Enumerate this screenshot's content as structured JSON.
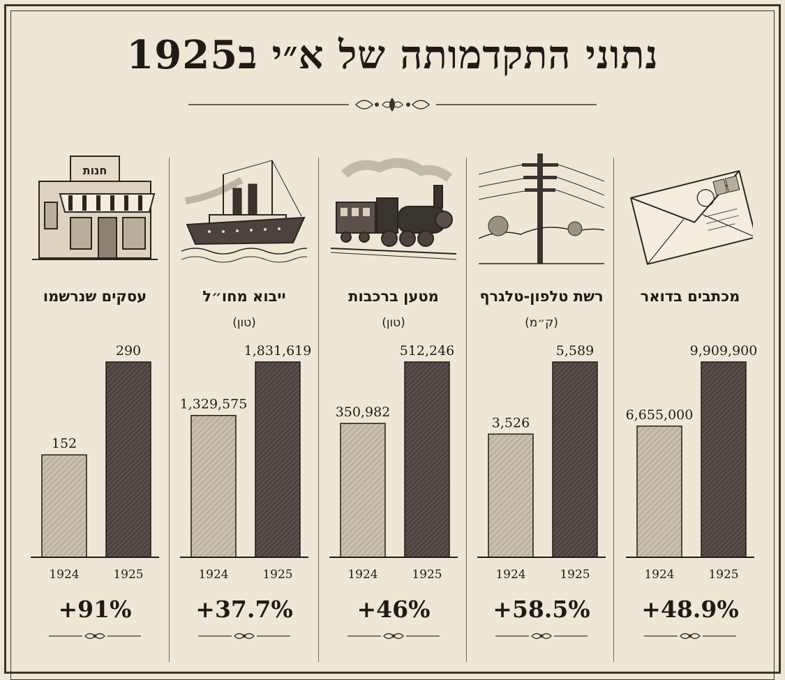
{
  "title": "נתוני התקדמותה של א״י ב1925",
  "chart_data": [
    {
      "type": "bar",
      "title": "עסקים שנרשמו",
      "unit": "",
      "categories": [
        "1924",
        "1925"
      ],
      "values": [
        152,
        290
      ],
      "value_labels": [
        "152",
        "290"
      ],
      "change": "+91%",
      "icon": "shop-icon"
    },
    {
      "type": "bar",
      "title": "ייבוא מחו״ל",
      "unit": "(טון)",
      "categories": [
        "1924",
        "1925"
      ],
      "values": [
        1329575,
        1831619
      ],
      "value_labels": [
        "1,329,575",
        "1,831,619"
      ],
      "change": "+37.7%",
      "icon": "steamship-icon"
    },
    {
      "type": "bar",
      "title": "מטען ברכבות",
      "unit": "(טון)",
      "categories": [
        "1924",
        "1925"
      ],
      "values": [
        350982,
        512246
      ],
      "value_labels": [
        "350,982",
        "512,246"
      ],
      "change": "+46%",
      "icon": "locomotive-icon"
    },
    {
      "type": "bar",
      "title": "רשת טלפון-טלגרף",
      "unit": "(ק״מ)",
      "categories": [
        "1924",
        "1925"
      ],
      "values": [
        3526,
        5589
      ],
      "value_labels": [
        "3,526",
        "5,589"
      ],
      "change": "+58.5%",
      "icon": "telegraph-pole-icon"
    },
    {
      "type": "bar",
      "title": "מכתבים בדואר",
      "unit": "",
      "categories": [
        "1924",
        "1925"
      ],
      "values": [
        6655000,
        9909900
      ],
      "value_labels": [
        "6,655,000",
        "9,909,900"
      ],
      "change": "+48.9%",
      "icon": "envelope-icon"
    }
  ],
  "shop_sign": "חנות",
  "colors": {
    "bar_1924": "#bdb4a3",
    "bar_1925": "#4f4841",
    "paper": "#efe7d6",
    "ink": "#1e1b17"
  }
}
